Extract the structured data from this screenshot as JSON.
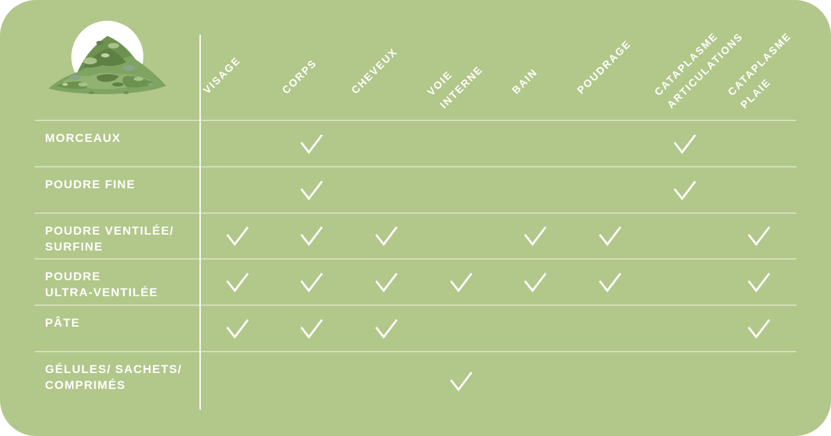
{
  "colors": {
    "background": "#b2c78a",
    "grid_line": "rgba(255,255,255,0.45)",
    "divider": "#ffffff",
    "text": "#ffffff",
    "clay_greens": [
      "#5d8045",
      "#6d924f",
      "#7fa361",
      "#92b271",
      "#a8c389",
      "#c0d4a2",
      "#8ba58a"
    ]
  },
  "logo": {
    "icon": "clay-pile-icon",
    "shape": "white-circle-with-green-clay-heap"
  },
  "table": {
    "check_symbol": "✓",
    "columns": [
      {
        "id": "visage",
        "lines": [
          "VISAGE"
        ]
      },
      {
        "id": "corps",
        "lines": [
          "CORPS"
        ]
      },
      {
        "id": "cheveux",
        "lines": [
          "CHEVEUX"
        ]
      },
      {
        "id": "voie-interne",
        "lines": [
          "VOIE",
          "INTERNE"
        ]
      },
      {
        "id": "bain",
        "lines": [
          "BAIN"
        ]
      },
      {
        "id": "poudrage",
        "lines": [
          "POUDRAGE"
        ]
      },
      {
        "id": "cataplasme-articulations",
        "lines": [
          "CATAPLASME",
          "ARTICULATIONS"
        ]
      },
      {
        "id": "cataplasme-plaie",
        "lines": [
          "CATAPLASME",
          "PLAIE"
        ]
      }
    ],
    "rows": [
      {
        "id": "morceaux",
        "label_lines": [
          "MORCEAUX"
        ],
        "checks": [
          false,
          true,
          false,
          false,
          false,
          false,
          true,
          false
        ]
      },
      {
        "id": "poudre-fine",
        "label_lines": [
          "POUDRE FINE"
        ],
        "checks": [
          false,
          true,
          false,
          false,
          false,
          false,
          true,
          false
        ]
      },
      {
        "id": "poudre-ventilee-surfine",
        "label_lines": [
          "POUDRE VENTILÉE/",
          "SURFINE"
        ],
        "checks": [
          true,
          true,
          true,
          false,
          true,
          true,
          false,
          true
        ]
      },
      {
        "id": "poudre-ultra-ventilee",
        "label_lines": [
          "POUDRE",
          "ULTRA-VENTILÉE"
        ],
        "checks": [
          true,
          true,
          true,
          true,
          true,
          true,
          false,
          true
        ]
      },
      {
        "id": "pate",
        "label_lines": [
          "PÂTE"
        ],
        "checks": [
          true,
          true,
          true,
          false,
          false,
          false,
          false,
          true
        ]
      },
      {
        "id": "gelules-sachets-comprimes",
        "label_lines": [
          "GÉLULES/ SACHETS/",
          "COMPRIMÉS"
        ],
        "checks": [
          false,
          false,
          false,
          true,
          false,
          false,
          false,
          false
        ]
      }
    ]
  }
}
